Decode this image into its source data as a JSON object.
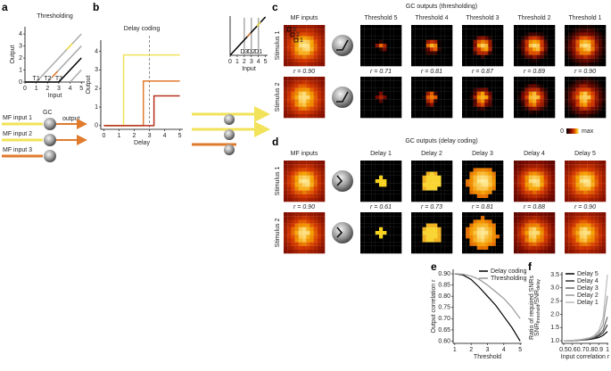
{
  "panel_labels": [
    "a",
    "b",
    "c",
    "d",
    "e",
    "f"
  ],
  "chart_data": [
    {
      "type": "line",
      "title": "Thresholding",
      "xlabel": "Input",
      "ylabel": "Output",
      "xlim": [
        0,
        5.3
      ],
      "ylim": [
        0,
        4.6
      ],
      "xticks": [
        0,
        1,
        2,
        3,
        4,
        5
      ],
      "yticks": [
        0,
        1,
        2,
        3,
        4
      ],
      "series": [
        {
          "color": "#aaaaaa",
          "x": [
            0,
            1,
            5
          ],
          "values": [
            0,
            0,
            4
          ]
        },
        {
          "color": "#aaaaaa",
          "x": [
            0,
            2,
            5
          ],
          "values": [
            0,
            0,
            3
          ]
        },
        {
          "color": "#000000",
          "x": [
            0,
            3,
            5
          ],
          "values": [
            0,
            0,
            2
          ]
        },
        {
          "color": "#aaaaaa",
          "x": [
            4,
            5
          ],
          "values": [
            0,
            1
          ]
        },
        {
          "color": "#f2dc3c",
          "x": [
            3.7,
            4.2
          ],
          "values": [
            2.7,
            3.2
          ]
        },
        {
          "color": "#e07b2e",
          "x": [
            2.4,
            2.9
          ],
          "values": [
            0.4,
            0.9
          ]
        }
      ],
      "annotations": [
        {
          "text": "T1",
          "x": 1
        },
        {
          "text": "T2",
          "x": 2
        },
        {
          "text": "T3",
          "x": 3
        }
      ]
    },
    {
      "type": "line",
      "title": "Delay coding",
      "xlabel": "Delay",
      "ylabel": "Output",
      "xlim": [
        -0.2,
        5.2
      ],
      "ylim": [
        -0.2,
        4.6
      ],
      "xticks": [
        0,
        1,
        2,
        3,
        4,
        5
      ],
      "yticks": [
        0,
        1,
        2,
        3,
        4
      ],
      "vline": 3,
      "series": [
        {
          "color": "#f2e35a",
          "x": [
            0,
            1.3,
            1.3,
            5
          ],
          "values": [
            0,
            0,
            3.8,
            3.8
          ]
        },
        {
          "color": "#e07b2e",
          "x": [
            0,
            2.6,
            2.6,
            5
          ],
          "values": [
            0,
            0,
            2.4,
            2.4
          ]
        },
        {
          "color": "#b7311f",
          "x": [
            0,
            3.3,
            3.3,
            5
          ],
          "values": [
            0,
            0,
            1.6,
            1.6
          ]
        }
      ]
    },
    {
      "type": "line",
      "xlabel": "Input",
      "xlim": [
        0,
        5.3
      ],
      "ylim": [
        0,
        4.6
      ],
      "xticks": [
        0,
        1,
        2,
        3,
        4,
        5
      ],
      "yticks": [],
      "series": [
        {
          "color": "#aaaaaa",
          "x": [
            2,
            2
          ],
          "values": [
            0,
            4.4
          ]
        },
        {
          "color": "#aaaaaa",
          "x": [
            3,
            3
          ],
          "values": [
            0,
            4.4
          ]
        },
        {
          "color": "#aaaaaa",
          "x": [
            4,
            4
          ],
          "values": [
            0,
            4.4
          ]
        },
        {
          "color": "#000000",
          "x": [
            0,
            5
          ],
          "values": [
            0,
            4.5
          ]
        },
        {
          "color": "#f2dc3c",
          "x": [
            3.8,
            4.3
          ],
          "values": [
            3.4,
            3.9
          ]
        },
        {
          "color": "#e07b2e",
          "x": [
            2.4,
            2.9
          ],
          "values": [
            2.2,
            2.6
          ]
        }
      ],
      "annotations": [
        {
          "text": "D3",
          "x": 2
        },
        {
          "text": "D2",
          "x": 3
        },
        {
          "text": "D1",
          "x": 4
        }
      ]
    },
    {
      "type": "line",
      "xlabel": "Threshold",
      "ylabel": "Output correlation r",
      "xlim": [
        0.9,
        5.1
      ],
      "ylim": [
        0.59,
        0.92
      ],
      "xticks": [
        1,
        2,
        3,
        4,
        5
      ],
      "yticks": [
        {
          "value": 0.6,
          "label": "0.60"
        },
        0.65,
        {
          "value": 0.7,
          "label": "0.70"
        },
        0.75,
        {
          "value": 0.8,
          "label": "0.80"
        },
        0.85,
        {
          "value": 0.9,
          "label": "0.90"
        }
      ],
      "legend": "upper right",
      "series": [
        {
          "name": "Delay coding",
          "color": "#000000",
          "x": [
            1,
            1.5,
            2,
            2.5,
            3,
            3.5,
            4,
            4.5,
            5
          ],
          "values": [
            0.9,
            0.895,
            0.875,
            0.84,
            0.8,
            0.76,
            0.71,
            0.66,
            0.6
          ]
        },
        {
          "name": "Thresholding",
          "color": "#999999",
          "x": [
            1,
            1.5,
            2,
            2.5,
            3,
            3.5,
            4,
            4.5,
            5
          ],
          "values": [
            0.9,
            0.898,
            0.89,
            0.875,
            0.85,
            0.82,
            0.79,
            0.75,
            0.7
          ]
        }
      ]
    },
    {
      "type": "line",
      "xlabel": "Input correlation r",
      "ylabel": "Ratio of required SNRs",
      "ylabel_ratio": [
        "SNR",
        "threshold",
        "/SNR",
        "delay"
      ],
      "xlim": [
        0.48,
        1.01
      ],
      "ylim": [
        0.9,
        3.6
      ],
      "xticks": [
        0.5,
        0.6,
        0.7,
        0.8,
        0.9,
        1
      ],
      "yticks": [
        {
          "value": 1,
          "label": "1.0"
        },
        1.5,
        {
          "value": 2,
          "label": "2.0"
        },
        2.5,
        {
          "value": 3,
          "label": "3.0"
        },
        3.5
      ],
      "legend": "upper left",
      "series": [
        {
          "name": "Delay 5",
          "color": "#000000",
          "x": [
            0.5,
            0.6,
            0.7,
            0.8,
            0.85,
            0.9,
            0.95,
            1
          ],
          "values": [
            1,
            1,
            1.02,
            1.05,
            1.08,
            1.12,
            1.2,
            1.35
          ]
        },
        {
          "name": "Delay 4",
          "color": "#333333",
          "x": [
            0.5,
            0.6,
            0.7,
            0.8,
            0.85,
            0.9,
            0.95,
            1
          ],
          "values": [
            1,
            1,
            1.03,
            1.07,
            1.1,
            1.18,
            1.3,
            1.6
          ]
        },
        {
          "name": "Delay 3",
          "color": "#666666",
          "x": [
            0.5,
            0.6,
            0.7,
            0.8,
            0.85,
            0.9,
            0.95,
            1
          ],
          "values": [
            1,
            1.01,
            1.03,
            1.08,
            1.13,
            1.22,
            1.4,
            1.9
          ]
        },
        {
          "name": "Delay 2",
          "color": "#999999",
          "x": [
            0.5,
            0.6,
            0.7,
            0.8,
            0.85,
            0.9,
            0.95,
            1
          ],
          "values": [
            1,
            1.01,
            1.04,
            1.1,
            1.16,
            1.3,
            1.6,
            2.7
          ]
        },
        {
          "name": "Delay 1",
          "color": "#bbbbbb",
          "x": [
            0.5,
            0.6,
            0.7,
            0.8,
            0.85,
            0.9,
            0.95,
            1
          ],
          "values": [
            1,
            1.02,
            1.05,
            1.12,
            1.2,
            1.38,
            1.85,
            3.5
          ]
        }
      ]
    }
  ],
  "panel_a_diagram": {
    "inputs": [
      "MF input 1",
      "MF input 2",
      "MF input 3"
    ],
    "cell": "GC",
    "output": "output"
  },
  "panel_c": {
    "title": "GC outputs (thresholding)",
    "columns": [
      "MF inputs",
      "Threshold 5",
      "Threshold 4",
      "Threshold 3",
      "Threshold 2",
      "Threshold 1"
    ],
    "rows": [
      "Stimulus 1",
      "Stimulus 2"
    ],
    "correlations": [
      "r = 0.90",
      "r = 0.71",
      "r = 0.81",
      "r = 0.87",
      "r = 0.89",
      "r = 0.90"
    ],
    "markers": [
      "3",
      "2",
      "1"
    ],
    "colorbar": [
      "0",
      "max"
    ]
  },
  "panel_d": {
    "title": "GC outputs (delay coding)",
    "columns": [
      "MF inputs",
      "Delay 1",
      "Delay 2",
      "Delay 3",
      "Delay 4",
      "Delay 5"
    ],
    "rows": [
      "Stimulus 1",
      "Stimulus 2"
    ],
    "correlations": [
      "r = 0.90",
      "r = 0.61",
      "r = 0.73",
      "r = 0.81",
      "r = 0.88",
      "r = 0.90"
    ]
  }
}
